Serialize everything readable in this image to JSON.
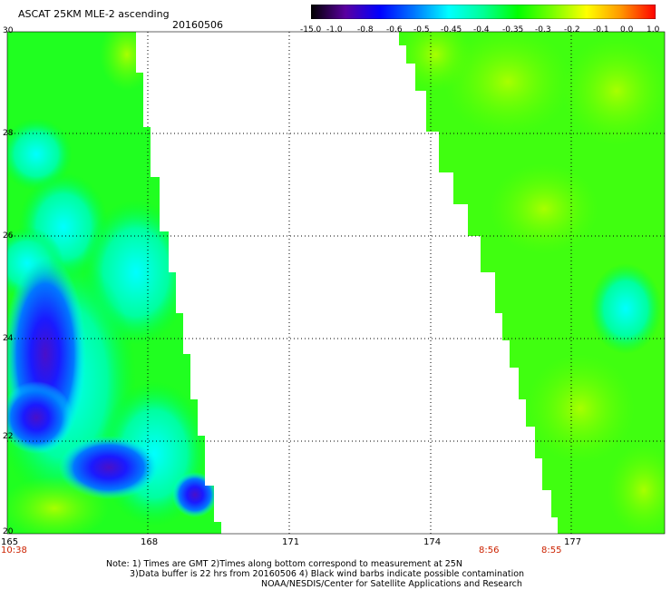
{
  "title": "ASCAT 25KM MLE-2 ascending",
  "date": "20160506",
  "colorbar": {
    "labels": [
      "-15.0",
      "-1.0",
      "-0.8",
      "-0.6",
      "-0.5",
      "-0.45",
      "-0.4",
      "-0.35",
      "-0.3",
      "-0.2",
      "-0.1",
      "0.0",
      "1.0"
    ],
    "colors": [
      "#000000",
      "#5a00a0",
      "#0000ff",
      "#0078ff",
      "#00ffff",
      "#00ff96",
      "#00ff00",
      "#78ff00",
      "#ffff00",
      "#ff9600",
      "#ff0000"
    ]
  },
  "axes": {
    "y_labels": [
      "30",
      "28",
      "26",
      "24",
      "22",
      "20"
    ],
    "x_labels": [
      "165",
      "168",
      "171",
      "174",
      "177"
    ],
    "time_labels": [
      "10:38",
      "8:56",
      "8:55"
    ]
  },
  "notes": [
    "Note: 1) Times are GMT 2)Times along bottom correspond to measurement at 25N",
    "3)Data buffer is 22 hrs from 20160506 4) Black wind barbs indicate possible contamination",
    "NOAA/NESDIS/Center for Satellite Applications and Research"
  ]
}
